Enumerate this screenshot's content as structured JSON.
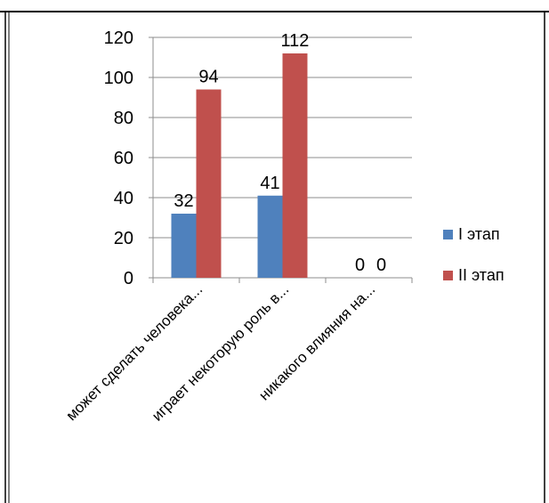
{
  "chart_data": {
    "type": "bar",
    "categories": [
      "может сделать человека...",
      "играет некоторую роль в...",
      "никакого влияния на..."
    ],
    "series": [
      {
        "name": "I этап",
        "values": [
          32,
          41,
          0
        ],
        "color": "#4F81BD"
      },
      {
        "name": "II этап",
        "values": [
          94,
          112,
          0
        ],
        "color": "#C0504D"
      }
    ],
    "ylim": [
      0,
      120
    ],
    "yticks": [
      0,
      20,
      40,
      60,
      80,
      100,
      120
    ],
    "grid": true,
    "legend": "right",
    "data_labels": true
  }
}
